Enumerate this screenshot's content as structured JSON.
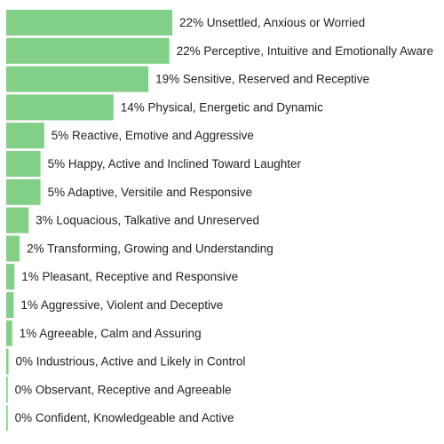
{
  "chart_data": {
    "type": "bar",
    "orientation": "horizontal",
    "bar_color": "#82cf87",
    "text_color": "#222222",
    "categories": [
      "Unsettled, Anxious or Worried",
      "Perceptive, Intuitive and Emotionally Aware",
      "Sensitive, Reserved and Receptive",
      "Physical, Energetic and Dynamic",
      "Reactive, Emotive and Aggressive",
      "Happy, Active and Inclined Toward Laughter",
      "Adaptive, Versitile and Responsive",
      "Loquacious, Talkative and Unreserved",
      "Transforming, Growing and Understanding",
      "Pleasant, Receptive and Responsive",
      "Aggressive, Violent and Deceptive",
      "Agreeable, Calm and Assuring",
      "Industrious, Active and Likely in Control",
      "Observant, Receptive and Agreeable",
      "Confident, Knowledgeable and Active"
    ],
    "values": [
      22.3,
      21.9,
      19.1,
      14.4,
      5.1,
      4.6,
      4.6,
      3.0,
      1.8,
      1.1,
      1.0,
      0.8,
      0.3,
      0.2,
      0.2
    ],
    "labels": [
      "22% Unsettled, Anxious or Worried",
      "22% Perceptive, Intuitive and Emotionally Aware",
      "19% Sensitive, Reserved and Receptive",
      "14% Physical, Energetic and Dynamic",
      "5% Reactive, Emotive and Aggressive",
      "5% Happy, Active and Inclined Toward Laughter",
      "5% Adaptive, Versitile and Responsive",
      "3% Loquacious, Talkative and Unreserved",
      "2% Transforming, Growing and Understanding",
      "1% Pleasant, Receptive and Responsive",
      "1% Aggressive, Violent and Deceptive",
      "1% Agreeable, Calm and Assuring",
      "0% Industrious, Active and Likely in Control",
      "0% Observant, Receptive and Agreeable",
      "0% Confident, Knowledgeable and Active"
    ],
    "title": "",
    "xlabel": "",
    "ylabel": "",
    "grid": false,
    "legend": "none"
  }
}
